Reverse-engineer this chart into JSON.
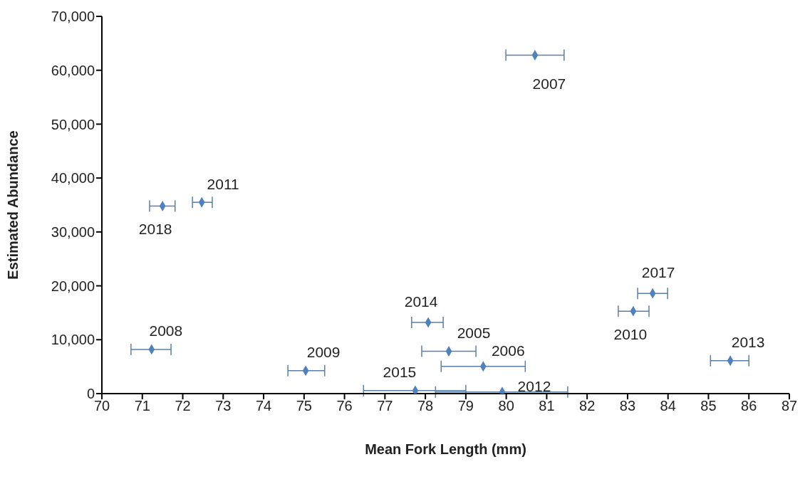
{
  "chart_data": {
    "type": "scatter",
    "xlabel": "Mean Fork Length (mm)",
    "ylabel": "Estimated Abundance",
    "x": [
      80.71,
      71.5,
      72.47,
      71.23,
      75.04,
      78.07,
      78.58,
      79.43,
      77.75,
      79.9,
      83.62,
      83.14,
      85.54
    ],
    "values": [
      62800,
      34800,
      35500,
      8200,
      4250,
      13200,
      7850,
      5050,
      550,
      300,
      18600,
      15300,
      6100
    ],
    "xerrors": [
      [
        79.99,
        81.43
      ],
      [
        71.18,
        71.81
      ],
      [
        72.24,
        72.73
      ],
      [
        70.72,
        71.71
      ],
      [
        74.6,
        75.51
      ],
      [
        77.66,
        78.44
      ],
      [
        77.91,
        79.25
      ],
      [
        78.39,
        80.47
      ],
      [
        76.47,
        79.0
      ],
      [
        78.25,
        81.52
      ],
      [
        83.25,
        83.99
      ],
      [
        82.77,
        83.53
      ],
      [
        85.05,
        86.0
      ]
    ],
    "color": "#4f81bd",
    "marker": "diamond",
    "grid": false,
    "legend": false,
    "annotations": [
      {
        "text": "2007",
        "x": 80.71,
        "y": 62800
      },
      {
        "text": "2018",
        "x": 71.5,
        "y": 34800
      },
      {
        "text": "2011",
        "x": 72.47,
        "y": 35500
      },
      {
        "text": "2008",
        "x": 71.23,
        "y": 8200
      },
      {
        "text": "2009",
        "x": 75.04,
        "y": 4250
      },
      {
        "text": "2014",
        "x": 78.07,
        "y": 13200
      },
      {
        "text": "2005",
        "x": 78.58,
        "y": 7850
      },
      {
        "text": "2006",
        "x": 79.43,
        "y": 5050
      },
      {
        "text": "2015",
        "x": 77.75,
        "y": 550
      },
      {
        "text": "2012",
        "x": 79.9,
        "y": 300
      },
      {
        "text": "2017",
        "x": 83.62,
        "y": 18600
      },
      {
        "text": "2010",
        "x": 83.14,
        "y": 15300
      },
      {
        "text": "2013",
        "x": 85.54,
        "y": 6100
      }
    ],
    "xlim": [
      70,
      87
    ],
    "xticks": [
      70,
      71,
      72,
      73,
      74,
      75,
      76,
      77,
      78,
      79,
      80,
      81,
      82,
      83,
      84,
      85,
      86,
      87
    ],
    "ylim": [
      0,
      70000
    ],
    "yticks": [
      {
        "value": 0,
        "label": "0"
      },
      {
        "value": 10000,
        "label": "10,000"
      },
      {
        "value": 20000,
        "label": "20,000"
      },
      {
        "value": 30000,
        "label": "30,000"
      },
      {
        "value": 40000,
        "label": "40,000"
      },
      {
        "value": 50000,
        "label": "50,000"
      },
      {
        "value": 60000,
        "label": "60,000"
      },
      {
        "value": 70000,
        "label": "70,000"
      }
    ]
  }
}
